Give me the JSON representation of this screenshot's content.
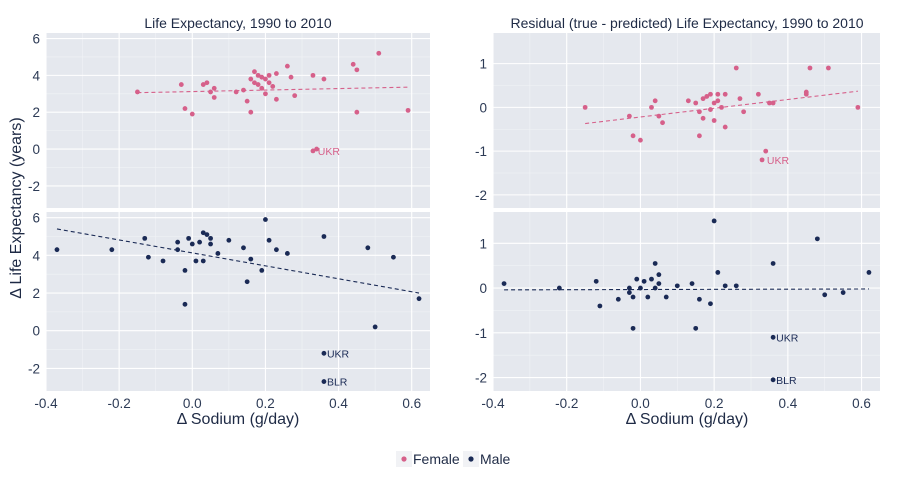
{
  "chart_data": [
    {
      "type": "scatter",
      "title": "Life Expectancy, 1990 to 2010",
      "xlabel": "Δ Sodium (g/day)",
      "ylabel": "Δ Life Expectancy (years)",
      "xlim": [
        -0.4,
        0.65
      ],
      "x_ticks": [
        "-0.4",
        "-0.2",
        "0.0",
        "0.2",
        "0.4",
        "0.6"
      ],
      "facets": [
        {
          "series": "Female",
          "ylim": [
            -3.2,
            6.3
          ],
          "y_ticks": [
            "6",
            "4",
            "2",
            "0",
            "-2"
          ],
          "points": [
            [
              -0.15,
              3.1
            ],
            [
              -0.03,
              3.5
            ],
            [
              -0.02,
              2.2
            ],
            [
              0.0,
              1.9
            ],
            [
              0.03,
              3.5
            ],
            [
              0.04,
              3.6
            ],
            [
              0.05,
              3.1
            ],
            [
              0.06,
              2.8
            ],
            [
              0.06,
              3.3
            ],
            [
              0.12,
              3.1
            ],
            [
              0.14,
              3.2
            ],
            [
              0.15,
              2.6
            ],
            [
              0.16,
              3.8
            ],
            [
              0.16,
              2.0
            ],
            [
              0.17,
              3.6
            ],
            [
              0.17,
              4.2
            ],
            [
              0.18,
              4.0
            ],
            [
              0.18,
              3.5
            ],
            [
              0.19,
              3.9
            ],
            [
              0.19,
              3.3
            ],
            [
              0.2,
              3.8
            ],
            [
              0.2,
              3.0
            ],
            [
              0.21,
              4.0
            ],
            [
              0.21,
              3.6
            ],
            [
              0.22,
              3.4
            ],
            [
              0.23,
              4.1
            ],
            [
              0.23,
              2.7
            ],
            [
              0.26,
              4.5
            ],
            [
              0.27,
              3.9
            ],
            [
              0.28,
              2.9
            ],
            [
              0.33,
              4.0
            ],
            [
              0.36,
              3.8
            ],
            [
              0.44,
              4.6
            ],
            [
              0.45,
              4.3
            ],
            [
              0.45,
              2.0
            ],
            [
              0.51,
              5.2
            ],
            [
              0.59,
              2.1
            ],
            [
              0.33,
              -0.1
            ],
            [
              0.34,
              0.0
            ]
          ],
          "trend": [
            [
              -0.15,
              3.06
            ],
            [
              0.59,
              3.36
            ]
          ],
          "annotations": [
            {
              "label": "UKR",
              "x": 0.335,
              "y": -0.1
            }
          ]
        },
        {
          "series": "Male",
          "ylim": [
            -3.2,
            6.3
          ],
          "y_ticks": [
            "6",
            "4",
            "2",
            "0",
            "-2"
          ],
          "points": [
            [
              -0.37,
              4.3
            ],
            [
              -0.22,
              4.3
            ],
            [
              -0.13,
              4.9
            ],
            [
              -0.12,
              3.9
            ],
            [
              -0.08,
              3.7
            ],
            [
              -0.04,
              4.3
            ],
            [
              -0.04,
              4.7
            ],
            [
              -0.02,
              3.2
            ],
            [
              -0.02,
              1.4
            ],
            [
              -0.01,
              4.9
            ],
            [
              0.0,
              4.6
            ],
            [
              0.01,
              3.7
            ],
            [
              0.02,
              4.7
            ],
            [
              0.03,
              5.2
            ],
            [
              0.03,
              3.7
            ],
            [
              0.04,
              5.1
            ],
            [
              0.05,
              4.9
            ],
            [
              0.05,
              4.6
            ],
            [
              0.07,
              4.1
            ],
            [
              0.1,
              4.8
            ],
            [
              0.14,
              4.4
            ],
            [
              0.15,
              2.6
            ],
            [
              0.16,
              3.8
            ],
            [
              0.19,
              3.2
            ],
            [
              0.2,
              5.9
            ],
            [
              0.21,
              4.8
            ],
            [
              0.23,
              4.3
            ],
            [
              0.26,
              4.1
            ],
            [
              0.36,
              5.0
            ],
            [
              0.48,
              4.4
            ],
            [
              0.5,
              0.2
            ],
            [
              0.55,
              3.9
            ],
            [
              0.62,
              1.7
            ],
            [
              0.36,
              -1.2
            ],
            [
              0.36,
              -2.7
            ]
          ],
          "trend": [
            [
              -0.37,
              5.4
            ],
            [
              0.62,
              2.0
            ]
          ],
          "annotations": [
            {
              "label": "UKR",
              "x": 0.36,
              "y": -1.2
            },
            {
              "label": "BLR",
              "x": 0.36,
              "y": -2.7
            }
          ]
        }
      ]
    },
    {
      "type": "scatter",
      "title": "Residual (true - predicted) Life Expectancy, 1990 to 2010",
      "xlabel": "Δ Sodium (g/day)",
      "ylabel": "",
      "xlim": [
        -0.4,
        0.65
      ],
      "x_ticks": [
        "-0.4",
        "-0.2",
        "0.0",
        "0.2",
        "0.4",
        "0.6"
      ],
      "facets": [
        {
          "series": "Female",
          "ylim": [
            -2.3,
            1.7
          ],
          "y_ticks": [
            "1",
            "0",
            "-1",
            "-2"
          ],
          "points": [
            [
              -0.15,
              0.0
            ],
            [
              -0.03,
              -0.2
            ],
            [
              -0.02,
              -0.65
            ],
            [
              0.0,
              -0.75
            ],
            [
              0.03,
              0.0
            ],
            [
              0.04,
              0.15
            ],
            [
              0.05,
              -0.2
            ],
            [
              0.06,
              -0.35
            ],
            [
              0.13,
              0.15
            ],
            [
              0.15,
              0.1
            ],
            [
              0.16,
              -0.1
            ],
            [
              0.16,
              -0.65
            ],
            [
              0.17,
              0.2
            ],
            [
              0.17,
              -0.25
            ],
            [
              0.18,
              0.25
            ],
            [
              0.19,
              0.3
            ],
            [
              0.19,
              -0.05
            ],
            [
              0.2,
              0.1
            ],
            [
              0.2,
              -0.3
            ],
            [
              0.21,
              0.3
            ],
            [
              0.21,
              0.15
            ],
            [
              0.22,
              0.0
            ],
            [
              0.23,
              -0.45
            ],
            [
              0.23,
              0.3
            ],
            [
              0.26,
              0.9
            ],
            [
              0.27,
              0.2
            ],
            [
              0.28,
              -0.1
            ],
            [
              0.32,
              0.3
            ],
            [
              0.35,
              0.1
            ],
            [
              0.45,
              0.3
            ],
            [
              0.45,
              0.35
            ],
            [
              0.51,
              0.9
            ],
            [
              0.59,
              0.0
            ],
            [
              0.33,
              -1.2
            ],
            [
              0.34,
              -1.0
            ],
            [
              0.46,
              0.9
            ],
            [
              0.36,
              0.1
            ]
          ],
          "trend": [
            [
              -0.15,
              -0.37
            ],
            [
              0.59,
              0.37
            ]
          ],
          "annotations": [
            {
              "label": "UKR",
              "x": 0.335,
              "y": -1.2
            }
          ]
        },
        {
          "series": "Male",
          "ylim": [
            -2.3,
            1.7
          ],
          "y_ticks": [
            "1",
            "0",
            "-1",
            "-2"
          ],
          "points": [
            [
              -0.37,
              0.1
            ],
            [
              -0.22,
              0.0
            ],
            [
              -0.12,
              0.15
            ],
            [
              -0.11,
              -0.4
            ],
            [
              -0.06,
              -0.25
            ],
            [
              -0.03,
              0.0
            ],
            [
              -0.03,
              -0.1
            ],
            [
              -0.02,
              -0.2
            ],
            [
              -0.02,
              -0.9
            ],
            [
              -0.01,
              0.2
            ],
            [
              0.0,
              0.0
            ],
            [
              0.01,
              0.15
            ],
            [
              0.02,
              -0.2
            ],
            [
              0.03,
              0.2
            ],
            [
              0.04,
              0.55
            ],
            [
              0.04,
              0.0
            ],
            [
              0.05,
              0.3
            ],
            [
              0.05,
              0.1
            ],
            [
              0.07,
              -0.2
            ],
            [
              0.1,
              0.05
            ],
            [
              0.14,
              0.1
            ],
            [
              0.15,
              -0.9
            ],
            [
              0.16,
              -0.25
            ],
            [
              0.19,
              -0.35
            ],
            [
              0.2,
              1.5
            ],
            [
              0.21,
              0.35
            ],
            [
              0.23,
              0.05
            ],
            [
              0.26,
              0.05
            ],
            [
              0.36,
              0.55
            ],
            [
              0.48,
              1.1
            ],
            [
              0.5,
              -0.15
            ],
            [
              0.55,
              -0.1
            ],
            [
              0.62,
              0.35
            ],
            [
              0.36,
              -1.1
            ],
            [
              0.36,
              -2.05
            ]
          ],
          "trend": [
            [
              -0.37,
              -0.04
            ],
            [
              0.62,
              -0.02
            ]
          ],
          "annotations": [
            {
              "label": "UKR",
              "x": 0.36,
              "y": -1.1
            },
            {
              "label": "BLR",
              "x": 0.36,
              "y": -2.05
            }
          ]
        }
      ]
    }
  ],
  "legend": {
    "position": "bottom",
    "items": [
      {
        "label": "Female",
        "color": "#d6608a"
      },
      {
        "label": "Male",
        "color": "#1a2a55"
      }
    ]
  },
  "colors": {
    "panel": "#e5e8ee",
    "grid": "#ffffff",
    "female": "#d6608a",
    "male": "#1a2a55"
  }
}
